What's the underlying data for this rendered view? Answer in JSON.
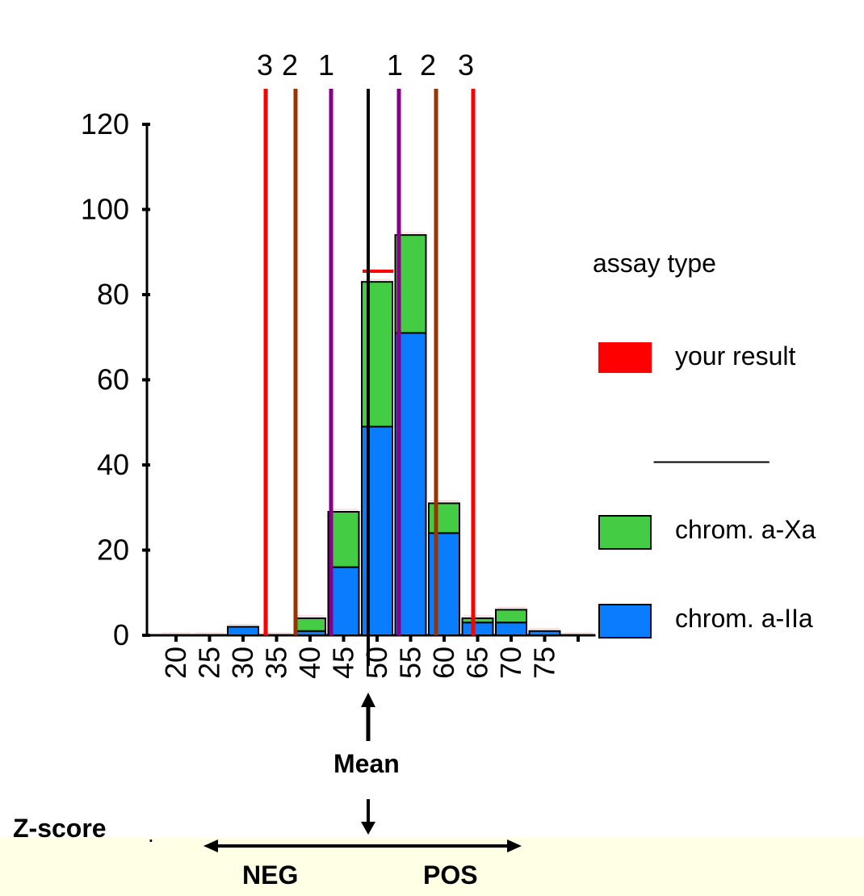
{
  "chart_data": {
    "type": "bar",
    "stacked": true,
    "categories": [
      "20",
      "25",
      "30",
      "35",
      "40",
      "45",
      "50",
      "55",
      "60",
      "65",
      "70",
      "75",
      ""
    ],
    "series": [
      {
        "name": "chrom. a-IIa",
        "color": "#0a7dff",
        "values": [
          0,
          0,
          2,
          0,
          1,
          16,
          49,
          71,
          24,
          3,
          3,
          1,
          0
        ]
      },
      {
        "name": "chrom. a-Xa",
        "color": "#44cc44",
        "values": [
          0,
          0,
          0,
          0,
          3,
          13,
          34,
          23,
          7,
          1,
          3,
          0,
          0
        ]
      }
    ],
    "your_result": {
      "name": "your result",
      "color": "#ff0000",
      "value": 85.5
    },
    "ylim": [
      0,
      120
    ],
    "yticks": [
      "0",
      "20",
      "40",
      "60",
      "80",
      "100",
      "120"
    ],
    "zscore_lines": {
      "mean": {
        "color": "#000000"
      },
      "labels": [
        "3",
        "2",
        "1",
        "1",
        "2",
        "3"
      ],
      "colors": [
        "#ff0000",
        "#993300",
        "#880088",
        "#880088",
        "#993300",
        "#ff0000"
      ]
    },
    "legend": {
      "title": "assay type",
      "placement": "right",
      "separator": "________",
      "items": [
        {
          "label": "your result",
          "color": "#ff0000"
        },
        {
          "label": "chrom. a-Xa",
          "color": "#44cc44"
        },
        {
          "label": "chrom. a-IIa",
          "color": "#0a7dff"
        }
      ]
    }
  },
  "annotations": {
    "mean_label": "Mean",
    "zscore_label": "Z-score",
    "neg_label": "NEG",
    "pos_label": "POS",
    "dot": "."
  }
}
